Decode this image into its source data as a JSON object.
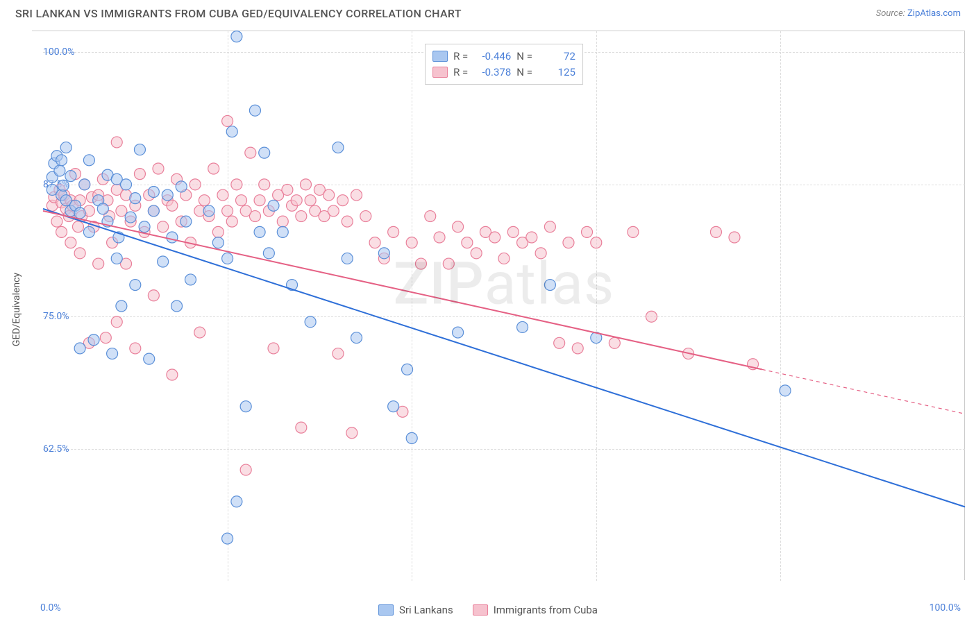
{
  "title": "SRI LANKAN VS IMMIGRANTS FROM CUBA GED/EQUIVALENCY CORRELATION CHART",
  "source_prefix": "Source: ",
  "source_link": "ZipAtlas.com",
  "y_axis_title": "GED/Equivalency",
  "watermark_a": "ZIP",
  "watermark_b": "atlas",
  "chart": {
    "type": "scatter",
    "xlim": [
      0,
      100
    ],
    "ylim": [
      50,
      102
    ],
    "x_ticks": [
      0,
      20,
      40,
      60,
      80,
      100
    ],
    "y_ticks": [
      62.5,
      75.0,
      87.5,
      100.0
    ],
    "y_tick_labels": [
      "62.5%",
      "75.0%",
      "87.5%",
      "100.0%"
    ],
    "x_origin_label": "0.0%",
    "x_max_label": "100.0%",
    "background_color": "#ffffff",
    "grid_color": "#dddddd",
    "marker_radius": 8,
    "marker_opacity": 0.55,
    "line_width": 2,
    "series": [
      {
        "id": "sri_lankans",
        "label": "Sri Lankans",
        "color_fill": "#a9c7f0",
        "color_stroke": "#5a8fd8",
        "color_line": "#2e6fd8",
        "R": "-0.446",
        "N": "72",
        "trend": {
          "x1": 0,
          "y1": 85.2,
          "x2": 100,
          "y2": 57.0
        },
        "points": [
          [
            1,
            88.2
          ],
          [
            1,
            87.0
          ],
          [
            1.2,
            89.5
          ],
          [
            1.5,
            90.2
          ],
          [
            1.8,
            88.8
          ],
          [
            2,
            86.5
          ],
          [
            2,
            89.8
          ],
          [
            2.2,
            87.4
          ],
          [
            2.5,
            91.0
          ],
          [
            2.5,
            86.0
          ],
          [
            3,
            88.3
          ],
          [
            3,
            85.0
          ],
          [
            3.5,
            85.5
          ],
          [
            4,
            84.8
          ],
          [
            4,
            72.0
          ],
          [
            4.5,
            87.5
          ],
          [
            5,
            89.8
          ],
          [
            5,
            83.0
          ],
          [
            5.5,
            72.8
          ],
          [
            6,
            86.0
          ],
          [
            6.5,
            85.2
          ],
          [
            7,
            84.0
          ],
          [
            7,
            88.4
          ],
          [
            7.5,
            71.5
          ],
          [
            8,
            88.0
          ],
          [
            8,
            80.5
          ],
          [
            8.2,
            82.5
          ],
          [
            8.5,
            76.0
          ],
          [
            9,
            87.5
          ],
          [
            9.5,
            84.4
          ],
          [
            10,
            86.2
          ],
          [
            10,
            78.0
          ],
          [
            10.5,
            90.8
          ],
          [
            11,
            83.5
          ],
          [
            11.5,
            71.0
          ],
          [
            12,
            86.8
          ],
          [
            12,
            85.0
          ],
          [
            13,
            80.2
          ],
          [
            13.5,
            86.5
          ],
          [
            14,
            82.5
          ],
          [
            14.5,
            76.0
          ],
          [
            15,
            87.3
          ],
          [
            15.5,
            84.0
          ],
          [
            16,
            78.5
          ],
          [
            18,
            85.0
          ],
          [
            19,
            82.0
          ],
          [
            20,
            80.5
          ],
          [
            20.5,
            92.5
          ],
          [
            21,
            101.5
          ],
          [
            21,
            57.5
          ],
          [
            22,
            66.5
          ],
          [
            23,
            94.5
          ],
          [
            23.5,
            83.0
          ],
          [
            24,
            90.5
          ],
          [
            24.5,
            81.0
          ],
          [
            25,
            85.5
          ],
          [
            26,
            83.0
          ],
          [
            27,
            78.0
          ],
          [
            29,
            74.5
          ],
          [
            32,
            91.0
          ],
          [
            33,
            80.5
          ],
          [
            34,
            73.0
          ],
          [
            37,
            81.0
          ],
          [
            38,
            66.5
          ],
          [
            39.5,
            70.0
          ],
          [
            40,
            63.5
          ],
          [
            45,
            73.5
          ],
          [
            52,
            74.0
          ],
          [
            55,
            78.0
          ],
          [
            60,
            73.0
          ],
          [
            80.5,
            68.0
          ],
          [
            20,
            54.0
          ]
        ]
      },
      {
        "id": "immigrants_cuba",
        "label": "Immigrants from Cuba",
        "color_fill": "#f6c2ce",
        "color_stroke": "#e97f9a",
        "color_line": "#e56084",
        "R": "-0.378",
        "N": "125",
        "trend": {
          "x1": 0,
          "y1": 85.0,
          "x2": 78,
          "y2": 70.0
        },
        "trend_ext": {
          "x1": 78,
          "y1": 70.0,
          "x2": 100,
          "y2": 65.8
        },
        "points": [
          [
            1,
            85.5
          ],
          [
            1.2,
            86.3
          ],
          [
            1.5,
            84.0
          ],
          [
            1.8,
            87.0
          ],
          [
            2,
            85.8
          ],
          [
            2,
            83.0
          ],
          [
            2.3,
            86.5
          ],
          [
            2.5,
            85.2
          ],
          [
            2.8,
            84.5
          ],
          [
            3,
            86.0
          ],
          [
            3,
            82.0
          ],
          [
            3.2,
            85.5
          ],
          [
            3.5,
            88.5
          ],
          [
            3.8,
            83.5
          ],
          [
            4,
            86.0
          ],
          [
            4,
            81.0
          ],
          [
            4.2,
            84.5
          ],
          [
            4.5,
            87.5
          ],
          [
            5,
            85.0
          ],
          [
            5,
            72.5
          ],
          [
            5.3,
            86.3
          ],
          [
            5.5,
            83.5
          ],
          [
            6,
            86.5
          ],
          [
            6,
            80.0
          ],
          [
            6.5,
            88.0
          ],
          [
            6.8,
            73.0
          ],
          [
            7,
            86.0
          ],
          [
            7.2,
            84.5
          ],
          [
            7.5,
            82.0
          ],
          [
            8,
            87.0
          ],
          [
            8,
            74.5
          ],
          [
            8.5,
            85.0
          ],
          [
            9,
            86.5
          ],
          [
            9,
            80.0
          ],
          [
            9.5,
            84.0
          ],
          [
            10,
            85.5
          ],
          [
            10,
            72.0
          ],
          [
            10.5,
            88.5
          ],
          [
            11,
            83.0
          ],
          [
            11.5,
            86.5
          ],
          [
            12,
            85.0
          ],
          [
            12,
            77.0
          ],
          [
            12.5,
            89.0
          ],
          [
            13,
            83.5
          ],
          [
            13.5,
            86.0
          ],
          [
            14,
            85.5
          ],
          [
            14,
            69.5
          ],
          [
            14.5,
            88.0
          ],
          [
            15,
            84.0
          ],
          [
            15.5,
            86.5
          ],
          [
            16,
            82.0
          ],
          [
            16.5,
            87.5
          ],
          [
            17,
            85.0
          ],
          [
            17,
            73.5
          ],
          [
            17.5,
            86.0
          ],
          [
            18,
            84.5
          ],
          [
            18.5,
            89.0
          ],
          [
            19,
            83.0
          ],
          [
            19.5,
            86.5
          ],
          [
            20,
            85.0
          ],
          [
            20,
            93.5
          ],
          [
            20.5,
            84.0
          ],
          [
            21,
            87.5
          ],
          [
            21.5,
            86.0
          ],
          [
            22,
            85.0
          ],
          [
            22,
            60.5
          ],
          [
            22.5,
            90.5
          ],
          [
            23,
            84.5
          ],
          [
            23.5,
            86.0
          ],
          [
            24,
            87.5
          ],
          [
            24.5,
            85.0
          ],
          [
            25,
            72.0
          ],
          [
            25.5,
            86.5
          ],
          [
            26,
            84.0
          ],
          [
            26.5,
            87.0
          ],
          [
            27,
            85.5
          ],
          [
            27.5,
            86.0
          ],
          [
            28,
            84.5
          ],
          [
            28,
            64.5
          ],
          [
            28.5,
            87.5
          ],
          [
            29,
            86.0
          ],
          [
            29.5,
            85.0
          ],
          [
            30,
            87.0
          ],
          [
            30.5,
            84.5
          ],
          [
            31,
            86.5
          ],
          [
            31.5,
            85.0
          ],
          [
            32,
            71.5
          ],
          [
            32.5,
            86.0
          ],
          [
            33,
            84.0
          ],
          [
            33.5,
            64.0
          ],
          [
            34,
            86.5
          ],
          [
            35,
            84.5
          ],
          [
            36,
            82.0
          ],
          [
            37,
            80.5
          ],
          [
            38,
            83.0
          ],
          [
            39,
            66.0
          ],
          [
            40,
            82.0
          ],
          [
            41,
            80.0
          ],
          [
            42,
            84.5
          ],
          [
            43,
            82.5
          ],
          [
            44,
            80.0
          ],
          [
            45,
            83.5
          ],
          [
            46,
            82.0
          ],
          [
            47,
            81.0
          ],
          [
            48,
            83.0
          ],
          [
            49,
            82.5
          ],
          [
            50,
            80.5
          ],
          [
            51,
            83.0
          ],
          [
            52,
            82.0
          ],
          [
            53,
            82.5
          ],
          [
            54,
            81.0
          ],
          [
            55,
            83.5
          ],
          [
            56,
            72.5
          ],
          [
            57,
            82.0
          ],
          [
            58,
            72.0
          ],
          [
            59,
            83.0
          ],
          [
            60,
            82.0
          ],
          [
            62,
            72.5
          ],
          [
            64,
            83.0
          ],
          [
            66,
            75.0
          ],
          [
            70,
            71.5
          ],
          [
            73,
            83.0
          ],
          [
            75,
            82.5
          ],
          [
            77,
            70.5
          ],
          [
            8,
            91.5
          ]
        ]
      }
    ]
  },
  "legend": {
    "r_label": "R =",
    "n_label": "N ="
  }
}
